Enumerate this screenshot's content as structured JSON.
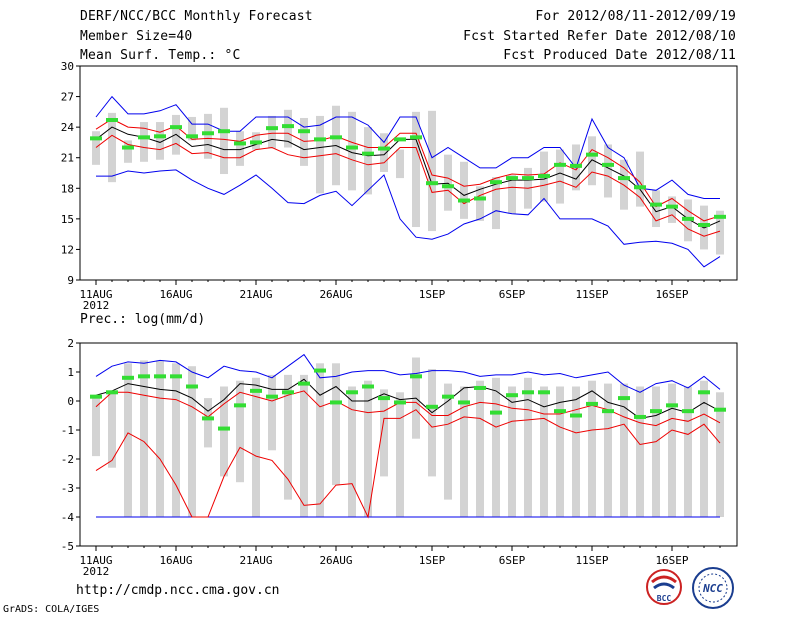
{
  "header": {
    "left_lines": [
      "DERF/NCC/BCC Monthly Forecast",
      "Member Size=40",
      "Mean Surf. Temp.: °C"
    ],
    "right_lines": [
      "For 2012/08/11-2012/09/19",
      "Fcst Started Refer Date 2012/08/10",
      "Fcst Produced Date 2012/08/11"
    ]
  },
  "footer": {
    "url": "http://cmdp.ncc.cma.gov.cn",
    "credit": "GrADS: COLA/IGES"
  },
  "logos": [
    {
      "label": "BCC",
      "icon": "bcc-logo"
    },
    {
      "label": "NCC",
      "icon": "ncc-logo"
    }
  ],
  "colors": {
    "box": "#d3d3d3",
    "mean": "#33dd33",
    "max": "#0000ee",
    "min": "#0000ee",
    "median": "#000000",
    "pct": "#ee0000"
  },
  "chart_data": [
    {
      "type": "box",
      "title": "Mean Surf. Temp.: °C",
      "ylim": [
        9,
        30
      ],
      "yticks": [
        "9",
        "12",
        "15",
        "18",
        "21",
        "24",
        "27",
        "30"
      ],
      "x_tick_labels": [
        "11AUG",
        "16AUG",
        "21AUG",
        "26AUG",
        "1SEP",
        "6SEP",
        "11SEP",
        "16SEP"
      ],
      "year_label": "2012",
      "box_low": [
        20.3,
        18.6,
        20.5,
        20.6,
        20.8,
        21.3,
        22.7,
        20.9,
        19.4,
        20.2,
        21.8,
        21.9,
        22.0,
        20.2,
        17.5,
        18.3,
        17.8,
        17.4,
        19.6,
        19.0,
        14.2,
        13.8,
        15.8,
        15.0,
        14.8,
        14.0,
        15.5,
        16.0,
        16.7,
        16.5,
        17.8,
        18.3,
        17.1,
        15.9,
        16.2,
        14.2,
        14.6,
        12.8,
        12.0,
        11.5
      ],
      "box_high": [
        23.6,
        25.4,
        22.7,
        24.5,
        24.5,
        25.2,
        25.0,
        25.3,
        25.9,
        23.6,
        23.5,
        25.1,
        25.7,
        24.9,
        25.1,
        26.1,
        25.5,
        24.0,
        23.4,
        21.8,
        25.5,
        25.6,
        21.3,
        20.6,
        18.2,
        19.1,
        19.3,
        20.0,
        21.6,
        21.8,
        22.3,
        23.1,
        22.3,
        20.8,
        21.6,
        17.8,
        17.2,
        16.9,
        16.3,
        15.8
      ],
      "max": [
        25.0,
        27.0,
        25.3,
        25.3,
        25.6,
        26.2,
        24.3,
        24.3,
        23.6,
        23.6,
        25.0,
        25.0,
        25.0,
        24.0,
        24.2,
        25.0,
        25.0,
        24.2,
        22.5,
        25.0,
        25.0,
        21.0,
        22.0,
        21.0,
        20.0,
        20.0,
        21.0,
        21.0,
        22.0,
        22.0,
        20.0,
        24.8,
        22.0,
        21.0,
        18.0,
        17.8,
        18.8,
        17.4,
        17.0,
        17.0
      ],
      "min": [
        19.2,
        19.2,
        19.7,
        19.5,
        19.7,
        19.8,
        18.8,
        18.0,
        17.4,
        18.3,
        19.3,
        18.0,
        16.6,
        16.5,
        17.3,
        17.7,
        16.3,
        17.8,
        19.3,
        15.0,
        13.2,
        13.0,
        13.5,
        14.5,
        15.0,
        15.8,
        15.5,
        15.4,
        17.0,
        15.0,
        15.0,
        15.0,
        14.3,
        12.5,
        12.7,
        12.8,
        12.6,
        12.0,
        10.3,
        11.3
      ],
      "pct_high": [
        23.8,
        24.8,
        24.0,
        23.9,
        23.5,
        24.1,
        22.8,
        22.9,
        22.8,
        22.6,
        23.2,
        23.4,
        23.4,
        22.6,
        22.7,
        23.1,
        22.5,
        22.0,
        22.0,
        23.4,
        23.4,
        19.3,
        19.0,
        18.2,
        18.4,
        19.0,
        19.4,
        19.3,
        19.4,
        20.5,
        19.8,
        21.8,
        21.0,
        20.0,
        18.6,
        16.2,
        17.0,
        15.8,
        14.8,
        15.3
      ],
      "median": [
        22.8,
        24.0,
        23.3,
        23.0,
        22.5,
        23.3,
        22.1,
        22.3,
        21.8,
        21.8,
        22.3,
        22.8,
        22.6,
        21.8,
        22.0,
        22.2,
        21.5,
        21.2,
        21.3,
        22.8,
        22.8,
        18.4,
        18.5,
        17.3,
        17.9,
        18.4,
        18.8,
        18.8,
        18.9,
        19.5,
        18.9,
        20.8,
        20.0,
        19.2,
        17.9,
        15.7,
        16.2,
        15.0,
        14.1,
        14.8
      ],
      "pct_low": [
        22.0,
        23.2,
        22.3,
        22.0,
        21.8,
        22.4,
        21.4,
        21.5,
        21.0,
        21.0,
        21.8,
        22.0,
        21.3,
        21.0,
        21.2,
        21.4,
        20.8,
        20.3,
        20.5,
        22.0,
        22.0,
        17.6,
        17.8,
        16.5,
        17.3,
        17.9,
        18.1,
        18.0,
        18.3,
        18.7,
        18.1,
        19.6,
        19.2,
        18.3,
        17.1,
        14.8,
        15.4,
        14.0,
        13.3,
        13.8
      ],
      "mean": [
        22.9,
        24.7,
        22.0,
        23.0,
        23.1,
        24.0,
        23.1,
        23.4,
        23.6,
        22.4,
        22.5,
        23.9,
        24.1,
        23.6,
        22.8,
        23.0,
        22.0,
        21.4,
        21.9,
        22.8,
        23.0,
        18.5,
        18.2,
        16.8,
        17.0,
        18.6,
        19.0,
        19.0,
        19.2,
        20.3,
        20.2,
        21.3,
        20.3,
        19.0,
        18.1,
        16.4,
        16.2,
        15.0,
        14.4,
        15.2
      ]
    },
    {
      "type": "box",
      "title": "Prec.: log(mm/d)",
      "ylim": [
        -5,
        2
      ],
      "yticks": [
        "-5",
        "-4",
        "-3",
        "-2",
        "-1",
        "0",
        "1",
        "2"
      ],
      "x_tick_labels": [
        "11AUG",
        "16AUG",
        "21AUG",
        "26AUG",
        "1SEP",
        "6SEP",
        "11SEP",
        "16SEP"
      ],
      "year_label": "2012",
      "box_low": [
        -1.9,
        -2.3,
        -4.0,
        -4.0,
        -4.0,
        -4.0,
        -4.0,
        -1.6,
        -2.6,
        -2.8,
        -4.0,
        -1.7,
        -3.4,
        -4.0,
        -4.0,
        -2.9,
        -4.0,
        -4.0,
        -2.6,
        -4.0,
        -1.3,
        -2.6,
        -3.4,
        -4.0,
        -4.0,
        -4.0,
        -4.0,
        -4.0,
        -4.0,
        -4.0,
        -4.0,
        -4.0,
        -4.0,
        -4.0,
        -4.0,
        -4.0,
        -4.0,
        -4.0,
        -4.0,
        -4.0
      ],
      "box_high": [
        0.1,
        0.3,
        1.3,
        1.4,
        1.4,
        1.3,
        1.2,
        0.1,
        0.5,
        0.7,
        0.8,
        0.9,
        0.9,
        0.9,
        1.3,
        1.3,
        0.5,
        0.7,
        0.4,
        0.3,
        1.5,
        1.1,
        0.6,
        0.5,
        0.7,
        0.8,
        0.5,
        0.8,
        0.5,
        0.5,
        0.5,
        0.7,
        0.6,
        0.6,
        0.5,
        0.5,
        0.6,
        0.5,
        0.7,
        0.3
      ],
      "max": [
        0.85,
        1.2,
        1.35,
        1.3,
        1.4,
        1.35,
        1.0,
        0.8,
        1.2,
        1.05,
        1.0,
        0.8,
        1.2,
        1.6,
        0.8,
        0.85,
        1.0,
        1.05,
        1.05,
        0.9,
        0.95,
        1.05,
        1.05,
        1.0,
        0.85,
        0.9,
        0.9,
        1.0,
        0.9,
        0.95,
        0.8,
        0.9,
        1.0,
        0.55,
        0.3,
        0.6,
        0.7,
        0.45,
        0.85,
        0.4
      ],
      "min": [
        -4,
        -4,
        -4,
        -4,
        -4,
        -4,
        -4,
        -4,
        -4,
        -4,
        -4,
        -4,
        -4,
        -4,
        -4,
        -4,
        -4,
        -4,
        -4,
        -4,
        -4,
        -4,
        -4,
        -4,
        -4,
        -4,
        -4,
        -4,
        -4,
        -4,
        -4,
        -4,
        -4,
        -4,
        -4,
        -4,
        -4,
        -4,
        -4,
        -4
      ],
      "median": [
        0.2,
        0.35,
        0.6,
        0.5,
        0.4,
        0.35,
        0.1,
        -0.35,
        0.05,
        0.6,
        0.55,
        0.4,
        0.4,
        0.75,
        0.2,
        0.5,
        0.0,
        0.0,
        0.25,
        0.05,
        0.1,
        -0.4,
        0.0,
        0.45,
        0.5,
        0.35,
        -0.05,
        0.05,
        -0.2,
        -0.05,
        0.05,
        0.35,
        -0.05,
        -0.2,
        -0.6,
        -0.5,
        -0.25,
        -0.4,
        -0.05,
        -0.35
      ],
      "pct_high": [
        -0.2,
        0.3,
        0.3,
        0.2,
        0.1,
        0.05,
        -0.2,
        -0.55,
        -0.1,
        0.3,
        0.15,
        0.0,
        0.2,
        0.35,
        -0.2,
        0.0,
        -0.3,
        -0.4,
        -0.35,
        -0.05,
        -0.05,
        -0.5,
        -0.5,
        -0.2,
        -0.05,
        -0.1,
        -0.25,
        -0.3,
        -0.45,
        -0.45,
        -0.3,
        -0.15,
        -0.3,
        -0.55,
        -0.75,
        -0.85,
        -0.6,
        -0.7,
        -0.45,
        -0.75
      ],
      "pct_low": [
        -2.4,
        -2.05,
        -1.1,
        -1.4,
        -2.0,
        -2.9,
        -4.0,
        -4.0,
        -2.6,
        -1.6,
        -1.9,
        -2.05,
        -2.7,
        -3.6,
        -3.55,
        -2.9,
        -2.85,
        -4.0,
        -0.6,
        -0.6,
        -0.3,
        -0.9,
        -0.8,
        -0.55,
        -0.6,
        -0.9,
        -0.7,
        -0.65,
        -0.6,
        -0.9,
        -1.1,
        -1.0,
        -0.95,
        -0.8,
        -1.5,
        -1.4,
        -1.0,
        -1.15,
        -0.8,
        -1.45
      ],
      "mean": [
        0.15,
        0.3,
        0.8,
        0.85,
        0.85,
        0.85,
        0.5,
        -0.6,
        -0.95,
        -0.15,
        0.35,
        0.15,
        0.3,
        0.6,
        1.05,
        -0.05,
        0.3,
        0.5,
        0.1,
        -0.05,
        0.85,
        -0.2,
        0.15,
        -0.05,
        0.45,
        -0.4,
        0.2,
        0.3,
        0.3,
        -0.35,
        -0.5,
        -0.1,
        -0.35,
        0.1,
        -0.55,
        -0.35,
        -0.15,
        -0.35,
        0.3,
        -0.3
      ]
    }
  ]
}
